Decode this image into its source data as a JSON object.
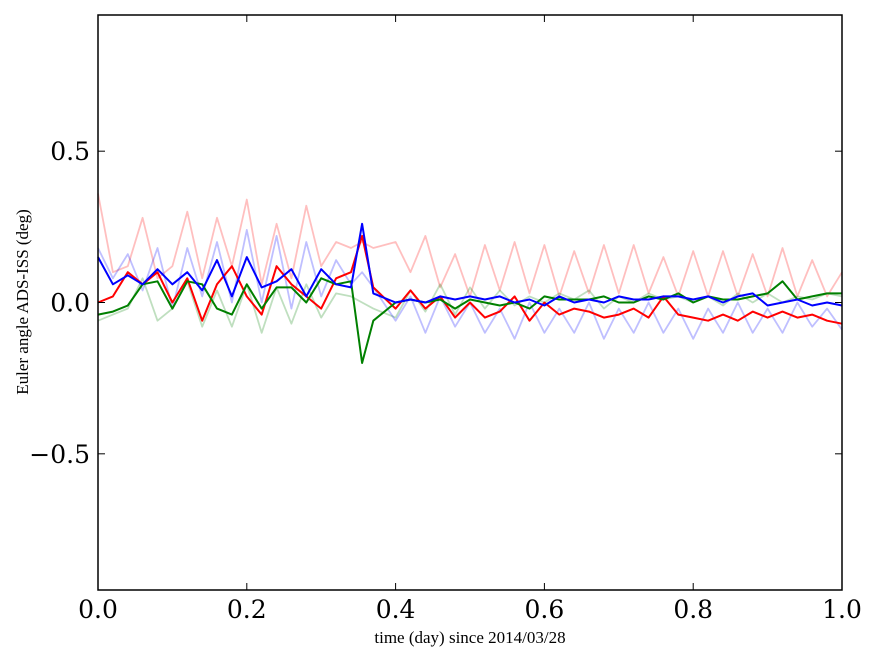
{
  "chart_data": {
    "type": "line",
    "title": "",
    "xlabel": "time (day) since 2014/03/28",
    "ylabel": "Euler angle ADS-ISS (deg)",
    "xlim": [
      0.0,
      1.0
    ],
    "ylim": [
      -0.95,
      0.95
    ],
    "xticks": [
      0.0,
      0.2,
      0.4,
      0.6,
      0.8,
      1.0
    ],
    "xtick_labels": [
      "0.0",
      "0.2",
      "0.4",
      "0.6",
      "0.8",
      "1.0"
    ],
    "yticks": [
      -0.5,
      0.0,
      0.5
    ],
    "ytick_labels": [
      "−0.5",
      "0.0",
      "0.5"
    ],
    "grid": false,
    "legend": "none",
    "x": [
      0.0,
      0.02,
      0.04,
      0.06,
      0.08,
      0.1,
      0.12,
      0.14,
      0.16,
      0.18,
      0.2,
      0.22,
      0.24,
      0.26,
      0.28,
      0.3,
      0.32,
      0.34,
      0.355,
      0.37,
      0.4,
      0.42,
      0.44,
      0.46,
      0.48,
      0.5,
      0.52,
      0.54,
      0.56,
      0.58,
      0.6,
      0.62,
      0.64,
      0.66,
      0.68,
      0.7,
      0.72,
      0.74,
      0.76,
      0.78,
      0.8,
      0.82,
      0.84,
      0.86,
      0.88,
      0.9,
      0.92,
      0.94,
      0.96,
      0.98,
      1.0
    ],
    "series": [
      {
        "color": "#ff0000",
        "opacity": 0.25,
        "values": [
          0.36,
          0.1,
          0.12,
          0.28,
          0.08,
          0.12,
          0.3,
          0.08,
          0.28,
          0.12,
          0.34,
          0.06,
          0.26,
          0.08,
          0.32,
          0.12,
          0.2,
          0.18,
          0.2,
          0.18,
          0.2,
          0.1,
          0.22,
          0.05,
          0.16,
          0.02,
          0.19,
          0.04,
          0.2,
          0.03,
          0.19,
          0.02,
          0.17,
          0.03,
          0.19,
          0.03,
          0.19,
          0.03,
          0.15,
          0.02,
          0.17,
          0.02,
          0.17,
          0.02,
          0.16,
          0.02,
          0.18,
          0.02,
          0.14,
          0.02,
          0.1
        ]
      },
      {
        "color": "#008000",
        "opacity": 0.25,
        "values": [
          -0.06,
          -0.04,
          -0.02,
          0.08,
          -0.06,
          -0.02,
          0.07,
          -0.08,
          0.04,
          -0.08,
          0.06,
          -0.1,
          0.05,
          -0.07,
          0.06,
          -0.05,
          0.03,
          0.02,
          0.0,
          -0.02,
          -0.05,
          0.04,
          -0.03,
          0.06,
          -0.04,
          0.05,
          -0.02,
          0.04,
          -0.01,
          0.02,
          0.0,
          0.03,
          0.01,
          0.04,
          -0.02,
          0.02,
          0.0,
          0.03,
          0.01,
          0.02,
          0.0,
          0.02,
          -0.01,
          0.03,
          0.0,
          0.03,
          0.0,
          0.02,
          0.01,
          0.03,
          0.02
        ]
      },
      {
        "color": "#0000ff",
        "opacity": 0.25,
        "values": [
          0.18,
          0.08,
          0.16,
          0.04,
          0.18,
          -0.02,
          0.18,
          0.02,
          0.2,
          0.0,
          0.24,
          0.0,
          0.22,
          -0.02,
          0.2,
          0.02,
          0.14,
          0.06,
          0.1,
          0.05,
          -0.06,
          0.02,
          -0.1,
          0.02,
          -0.08,
          0.0,
          -0.1,
          -0.02,
          -0.12,
          0.0,
          -0.1,
          -0.02,
          -0.1,
          0.0,
          -0.12,
          -0.02,
          -0.1,
          0.0,
          -0.1,
          -0.02,
          -0.12,
          -0.02,
          -0.1,
          0.0,
          -0.1,
          -0.02,
          -0.1,
          0.0,
          -0.08,
          -0.02,
          -0.09
        ]
      },
      {
        "color": "#ff0000",
        "opacity": 1,
        "values": [
          0.0,
          0.02,
          0.1,
          0.06,
          0.1,
          0.0,
          0.08,
          -0.06,
          0.06,
          0.12,
          0.02,
          -0.04,
          0.12,
          0.06,
          0.02,
          -0.02,
          0.08,
          0.1,
          0.22,
          0.05,
          -0.02,
          0.04,
          -0.02,
          0.02,
          -0.05,
          0.0,
          -0.05,
          -0.03,
          0.02,
          -0.06,
          0.0,
          -0.04,
          -0.02,
          -0.03,
          -0.05,
          -0.04,
          -0.02,
          -0.05,
          0.02,
          -0.04,
          -0.05,
          -0.06,
          -0.04,
          -0.06,
          -0.03,
          -0.05,
          -0.03,
          -0.05,
          -0.04,
          -0.06,
          -0.07
        ]
      },
      {
        "color": "#008000",
        "opacity": 1,
        "values": [
          -0.04,
          -0.03,
          -0.01,
          0.06,
          0.07,
          -0.02,
          0.07,
          0.06,
          -0.02,
          -0.04,
          0.06,
          -0.02,
          0.05,
          0.05,
          0.0,
          0.08,
          0.06,
          0.07,
          -0.2,
          -0.06,
          0.0,
          0.01,
          0.0,
          0.01,
          -0.02,
          0.01,
          0.0,
          -0.01,
          0.0,
          -0.02,
          0.02,
          0.01,
          0.01,
          0.01,
          0.02,
          0.0,
          0.0,
          0.02,
          0.01,
          0.03,
          0.0,
          0.02,
          0.01,
          0.01,
          0.02,
          0.03,
          0.07,
          0.01,
          0.02,
          0.03,
          0.03
        ]
      },
      {
        "color": "#0000ff",
        "opacity": 1,
        "values": [
          0.15,
          0.06,
          0.09,
          0.06,
          0.11,
          0.06,
          0.1,
          0.04,
          0.14,
          0.02,
          0.15,
          0.05,
          0.07,
          0.11,
          0.02,
          0.11,
          0.06,
          0.05,
          0.26,
          0.03,
          0.0,
          0.01,
          0.0,
          0.02,
          0.01,
          0.02,
          0.01,
          0.02,
          0.0,
          0.01,
          -0.01,
          0.02,
          0.0,
          0.01,
          0.0,
          0.02,
          0.01,
          0.01,
          0.02,
          0.02,
          0.01,
          0.02,
          0.0,
          0.02,
          0.03,
          -0.01,
          0.0,
          0.01,
          -0.01,
          0.0,
          -0.01
        ]
      }
    ]
  }
}
